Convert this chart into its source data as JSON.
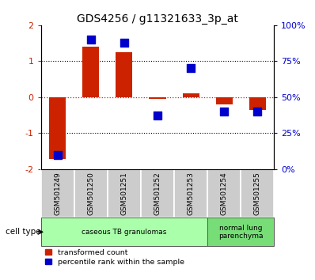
{
  "title": "GDS4256 / g11321633_3p_at",
  "samples": [
    "GSM501249",
    "GSM501250",
    "GSM501251",
    "GSM501252",
    "GSM501253",
    "GSM501254",
    "GSM501255"
  ],
  "red_values": [
    -1.72,
    1.4,
    1.25,
    -0.05,
    0.1,
    -0.2,
    -0.35
  ],
  "blue_values": [
    10,
    90,
    88,
    37,
    70,
    40,
    40
  ],
  "ylim_left": [
    -2,
    2
  ],
  "ylim_right": [
    0,
    100
  ],
  "yticks_left": [
    -2,
    -1,
    0,
    1,
    2
  ],
  "yticks_right": [
    0,
    25,
    50,
    75,
    100
  ],
  "ytick_labels_left": [
    "-2",
    "-1",
    "0",
    "1",
    "2"
  ],
  "ytick_labels_right": [
    "0%",
    "25%",
    "50%",
    "75%",
    "100%"
  ],
  "red_color": "#CC2200",
  "blue_color": "#0000CC",
  "cell_type_groups": [
    {
      "label": "caseous TB granulomas",
      "start": 0,
      "end": 4,
      "color": "#AAFFAA"
    },
    {
      "label": "normal lung\nparenchyma",
      "start": 5,
      "end": 6,
      "color": "#77DD77"
    }
  ],
  "cell_type_label": "cell type",
  "legend_red": "transformed count",
  "legend_blue": "percentile rank within the sample",
  "title_fontsize": 10,
  "tick_label_fontsize": 8,
  "bg_plot": "#FFFFFF",
  "bg_sample_row": "#CCCCCC"
}
